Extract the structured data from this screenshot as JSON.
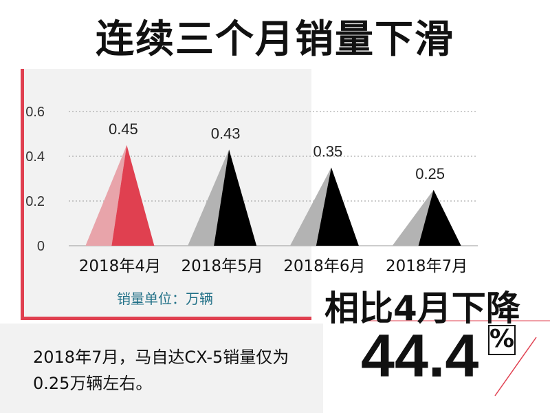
{
  "title": "连续三个月销量下滑",
  "unit_label": "销量单位：万辆",
  "headline": "相比4月下降",
  "big_percent": "44.4",
  "percent_sign": "%",
  "caption": "2018年7月，马自达CX-5销量仅为0.25万辆左右。",
  "colors": {
    "accent": "#e04050",
    "accent_light": "#e8a4aa",
    "dark": "#000000",
    "gray": "#b3b3b3"
  },
  "chart_data": {
    "type": "bar",
    "categories": [
      "2018年4月",
      "2018年5月",
      "2018年6月",
      "2018年7月"
    ],
    "values": [
      0.45,
      0.43,
      0.35,
      0.25
    ],
    "value_labels": [
      "0.45",
      "0.43",
      "0.35",
      "0.25"
    ],
    "yticks": [
      "0",
      "0.2",
      "0.4",
      "0.6"
    ],
    "ylim": [
      0,
      0.6
    ],
    "grid": true,
    "highlight_index": 0
  }
}
